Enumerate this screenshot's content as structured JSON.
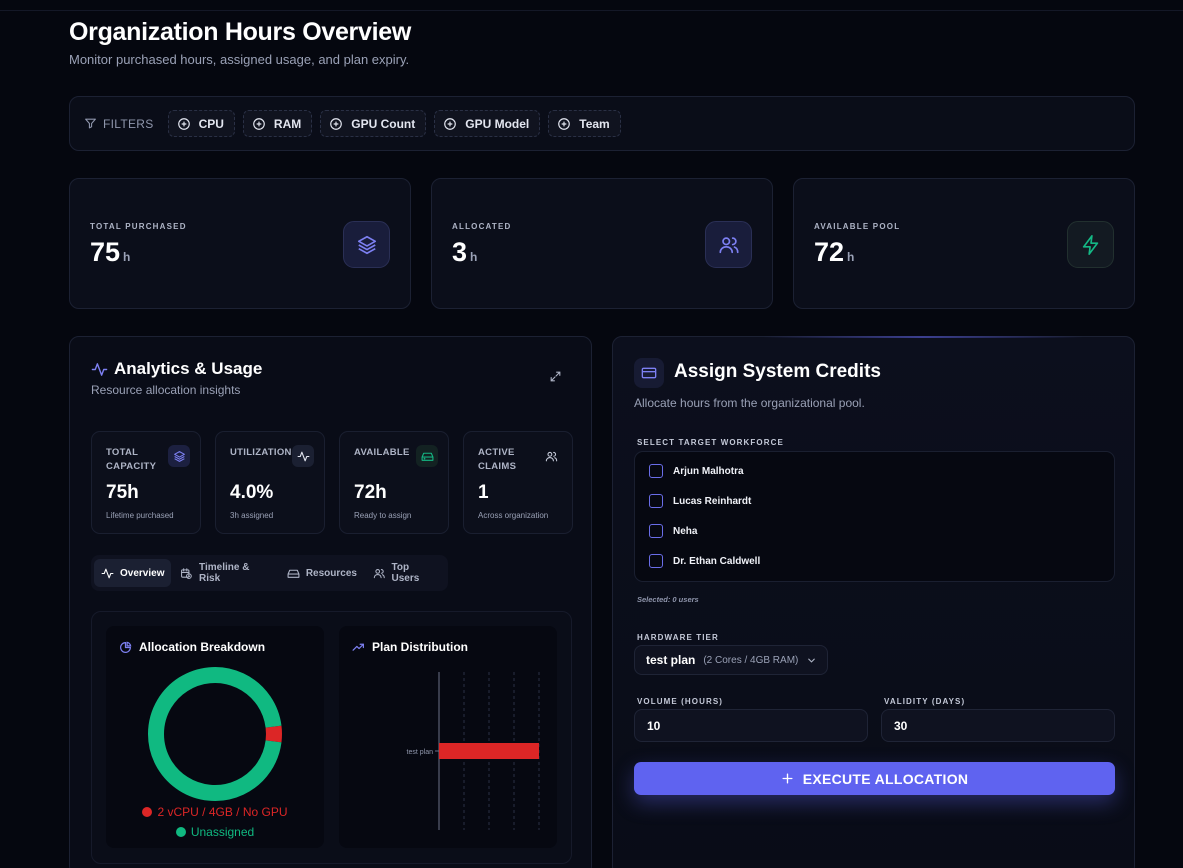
{
  "header": {
    "title": "Organization Hours Overview",
    "subtitle": "Monitor purchased hours, assigned usage, and plan expiry."
  },
  "filters": {
    "label": "FILTERS",
    "chips": [
      "CPU",
      "RAM",
      "GPU Count",
      "GPU Model",
      "Team"
    ]
  },
  "stats": [
    {
      "label": "TOTAL PURCHASED",
      "value": "75",
      "unit": "h",
      "icon": "layers-icon",
      "color": "#6a6de8"
    },
    {
      "label": "ALLOCATED",
      "value": "3",
      "unit": "h",
      "icon": "users-icon",
      "color": "#6a6de8"
    },
    {
      "label": "AVAILABLE POOL",
      "value": "72",
      "unit": "h",
      "icon": "zap-icon",
      "color": "#14b885"
    }
  ],
  "analytics": {
    "title": "Analytics & Usage",
    "subtitle": "Resource allocation insights",
    "metrics": [
      {
        "label": "TOTAL CAPACITY",
        "value": "75h",
        "note": "Lifetime purchased",
        "icon": "layers-icon"
      },
      {
        "label": "UTILIZATION",
        "value": "4.0%",
        "note": "3h assigned",
        "icon": "activity-icon"
      },
      {
        "label": "AVAILABLE",
        "value": "72h",
        "note": "Ready to assign",
        "icon": "hard-drive-icon"
      },
      {
        "label": "ACTIVE CLAIMS",
        "value": "1",
        "note": "Across organization",
        "icon": "users-icon"
      }
    ],
    "tabs": [
      "Overview",
      "Timeline & Risk",
      "Resources",
      "Top Users"
    ],
    "active_tab": "Overview",
    "breakdown_title": "Allocation Breakdown",
    "distribution_title": "Plan Distribution"
  },
  "chart_data": [
    {
      "type": "pie",
      "title": "Allocation Breakdown",
      "labels": [
        "2 vCPU / 4GB / No GPU",
        "Unassigned"
      ],
      "values": [
        3,
        72
      ],
      "colors": [
        "#dc2626",
        "#10b981"
      ]
    },
    {
      "type": "bar",
      "title": "Plan Distribution",
      "orientation": "horizontal",
      "categories": [
        "test plan"
      ],
      "values": [
        1
      ],
      "xlim": [
        0,
        1
      ],
      "colors": [
        "#dc2626"
      ]
    }
  ],
  "assign": {
    "title": "Assign System Credits",
    "subtitle": "Allocate hours from the organizational pool.",
    "workforce_label": "SELECT TARGET WORKFORCE",
    "users": [
      "Arjun Malhotra",
      "Lucas Reinhardt",
      "Neha",
      "Dr. Ethan Caldwell"
    ],
    "selected_note": "Selected: 0 users",
    "hardware_label": "HARDWARE TIER",
    "tier_name": "test plan",
    "tier_spec": "(2 Cores / 4GB RAM)",
    "volume_label": "VOLUME (HOURS)",
    "volume_value": "10",
    "validity_label": "VALIDITY (DAYS)",
    "validity_value": "30",
    "execute_label": "EXECUTE ALLOCATION"
  }
}
